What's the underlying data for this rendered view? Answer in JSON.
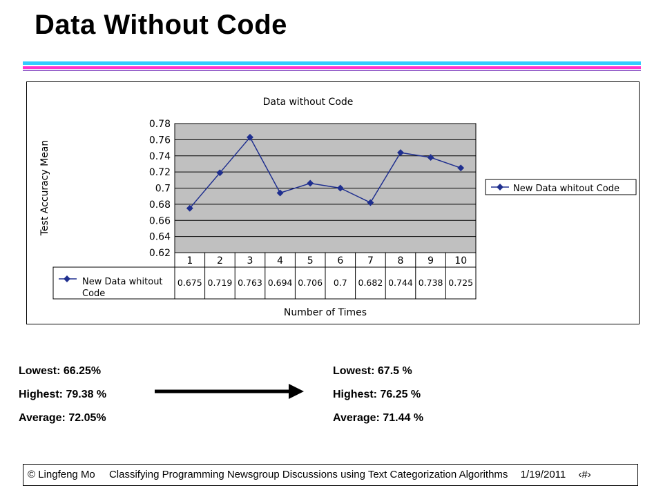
{
  "slide": {
    "title": "Data Without Code",
    "colors": {
      "rule_blue": "#33ccff",
      "rule_magenta": "#ff33cc",
      "rule_purple": "#9966cc"
    }
  },
  "chart_data": {
    "type": "line",
    "title": "Data without Code",
    "xlabel": "Number of Times",
    "ylabel": "Test Accuracy Mean",
    "categories": [
      "1",
      "2",
      "3",
      "4",
      "5",
      "6",
      "7",
      "8",
      "9",
      "10"
    ],
    "series": [
      {
        "name": "New Data whitout Code",
        "values": [
          0.675,
          0.719,
          0.763,
          0.694,
          0.706,
          0.7,
          0.682,
          0.744,
          0.738,
          0.725
        ],
        "value_labels": [
          "0.675",
          "0.719",
          "0.763",
          "0.694",
          "0.706",
          "0.7",
          "0.682",
          "0.744",
          "0.738",
          "0.725"
        ],
        "color": "#1f2f8f"
      }
    ],
    "ylim": [
      0.62,
      0.78
    ],
    "yticks": [
      "0.78",
      "0.76",
      "0.74",
      "0.72",
      "0.7",
      "0.68",
      "0.66",
      "0.64",
      "0.62"
    ],
    "grid": true,
    "plot_background": "#c0c0c0",
    "legend": "right",
    "data_table": true
  },
  "stats_left": {
    "lowest": "Lowest: 66.25%",
    "highest": "Highest: 79.38 %",
    "average": "Average: 72.05%"
  },
  "stats_right": {
    "lowest": "Lowest: 67.5 %",
    "highest": "Highest: 76.25 %",
    "average": "Average: 71.44 %"
  },
  "footer": {
    "author": "© Lingfeng Mo",
    "title": "Classifying Programming Newsgroup Discussions using Text Categorization Algorithms",
    "date": "1/19/2011",
    "slide_number": "‹#›"
  }
}
